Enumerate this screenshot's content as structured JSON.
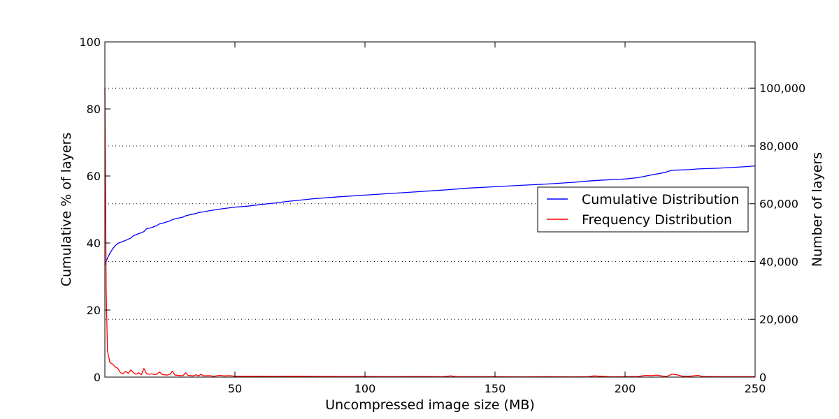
{
  "chart_data": {
    "type": "line",
    "xlabel": "Uncompressed image size (MB)",
    "ylabel_left": "Cumulative % of layers",
    "ylabel_right": "Number of layers",
    "xlim": [
      0,
      250
    ],
    "ylim_left": [
      0,
      100
    ],
    "ylim_right": [
      0,
      116000
    ],
    "x_ticks": [
      {
        "value": 50,
        "label": "50"
      },
      {
        "value": 100,
        "label": "100"
      },
      {
        "value": 150,
        "label": "150"
      },
      {
        "value": 200,
        "label": "200"
      },
      {
        "value": 250,
        "label": "250"
      }
    ],
    "y_left_ticks": [
      {
        "value": 0,
        "label": "0"
      },
      {
        "value": 20,
        "label": "20"
      },
      {
        "value": 40,
        "label": "40"
      },
      {
        "value": 60,
        "label": "60"
      },
      {
        "value": 80,
        "label": "80"
      },
      {
        "value": 100,
        "label": "100"
      }
    ],
    "y_right_ticks": [
      {
        "value": 0,
        "label": "0"
      },
      {
        "value": 20000,
        "label": "20,000"
      },
      {
        "value": 40000,
        "label": "40,000"
      },
      {
        "value": 60000,
        "label": "60,000"
      },
      {
        "value": 80000,
        "label": "80,000"
      },
      {
        "value": 100000,
        "label": "100,000"
      }
    ],
    "grid": "horizontal dotted at right-axis ticks",
    "legend_position": "center-right",
    "series": [
      {
        "name": "Cumulative Distribution",
        "axis": "left",
        "color": "#0000ff",
        "x": [
          0,
          1,
          2,
          3,
          4,
          5,
          7,
          8,
          10,
          11,
          13,
          15,
          16,
          18,
          20,
          21,
          23,
          25,
          26,
          28,
          30,
          31,
          33,
          35,
          36,
          38,
          40,
          45,
          50,
          55,
          60,
          65,
          70,
          75,
          80,
          90,
          100,
          110,
          120,
          130,
          140,
          150,
          160,
          170,
          180,
          186,
          190,
          200,
          205,
          210,
          215,
          218,
          225,
          228,
          235,
          240,
          245,
          250
        ],
        "y": [
          33.5,
          35.5,
          37.0,
          38.3,
          39.2,
          39.9,
          40.5,
          40.8,
          41.5,
          42.2,
          42.8,
          43.4,
          44.2,
          44.6,
          45.2,
          45.7,
          46.1,
          46.6,
          47.0,
          47.4,
          47.7,
          48.1,
          48.5,
          48.8,
          49.1,
          49.3,
          49.6,
          50.2,
          50.7,
          51.0,
          51.5,
          51.9,
          52.4,
          52.8,
          53.2,
          53.8,
          54.3,
          54.8,
          55.3,
          55.8,
          56.4,
          56.8,
          57.2,
          57.6,
          58.1,
          58.5,
          58.7,
          59.1,
          59.5,
          60.3,
          61.0,
          61.7,
          61.9,
          62.1,
          62.3,
          62.5,
          62.7,
          63.0
        ]
      },
      {
        "name": "Frequency Distribution",
        "axis": "right",
        "color": "#ff0000",
        "x": [
          0,
          0.5,
          1,
          2,
          3,
          4,
          5,
          6,
          7,
          8,
          9,
          10,
          11,
          12,
          13,
          14,
          15,
          16,
          17,
          18,
          19,
          20,
          21,
          22,
          23,
          24,
          25,
          26,
          27,
          28,
          29,
          30,
          31,
          32,
          33,
          34,
          35,
          36,
          37,
          38,
          40,
          42,
          44,
          46,
          48,
          50,
          55,
          60,
          65,
          70,
          75,
          80,
          90,
          100,
          110,
          120,
          130,
          133,
          135,
          140,
          150,
          160,
          170,
          180,
          186,
          188,
          195,
          200,
          205,
          208,
          210,
          212,
          214,
          216,
          218,
          220,
          222,
          225,
          228,
          230,
          235,
          240,
          245,
          250
        ],
        "y": [
          100000,
          30000,
          9000,
          5000,
          4500,
          3500,
          3000,
          1500,
          1200,
          2000,
          1300,
          2500,
          1500,
          1000,
          1500,
          800,
          3000,
          1200,
          1000,
          1100,
          900,
          1000,
          1800,
          900,
          800,
          700,
          1000,
          2000,
          700,
          600,
          500,
          500,
          1500,
          600,
          500,
          400,
          800,
          400,
          1000,
          400,
          500,
          300,
          600,
          400,
          500,
          300,
          300,
          300,
          250,
          300,
          300,
          250,
          200,
          200,
          150,
          200,
          150,
          400,
          150,
          150,
          150,
          100,
          150,
          100,
          150,
          400,
          100,
          150,
          200,
          600,
          500,
          700,
          400,
          200,
          1000,
          800,
          300,
          300,
          600,
          200,
          150,
          150,
          150,
          150
        ]
      }
    ]
  }
}
